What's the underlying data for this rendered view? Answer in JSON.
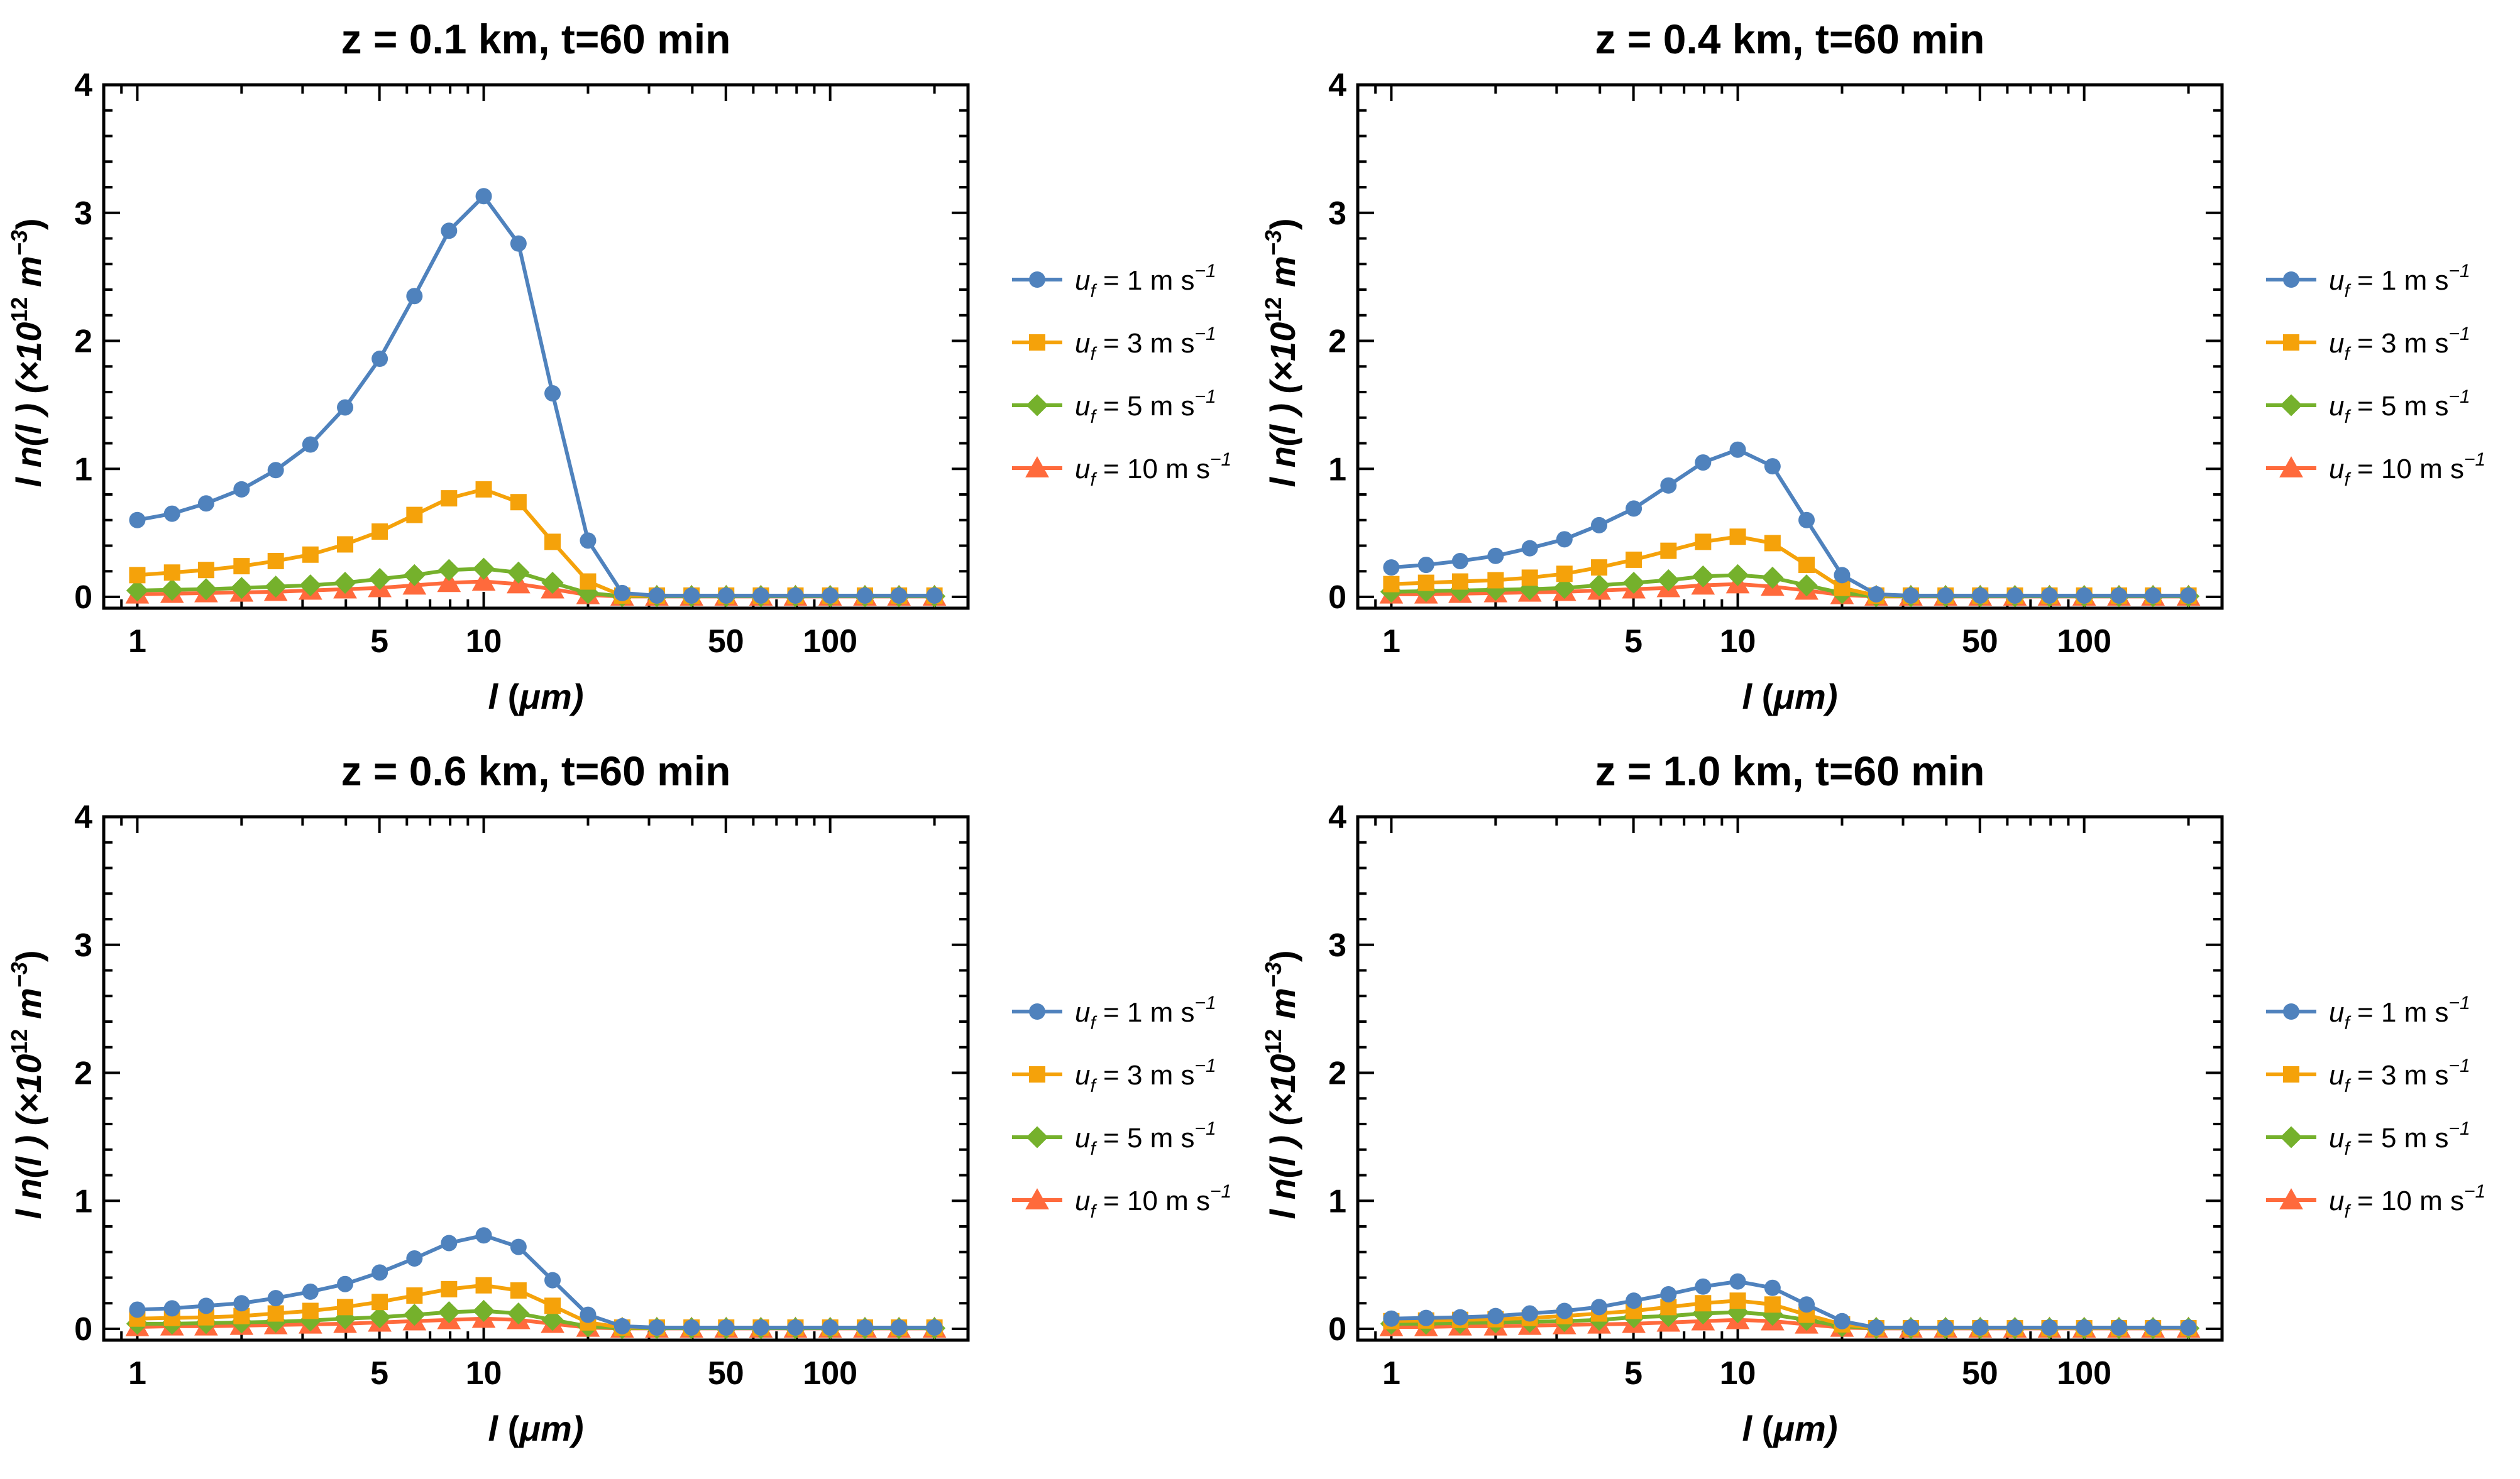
{
  "figure": {
    "legend": [
      {
        "prefix": "u",
        "sub": "f",
        "label": " = 1 m s",
        "sup": "−1",
        "color": "#4f82bd",
        "marker": "circle"
      },
      {
        "prefix": "u",
        "sub": "f",
        "label": " = 3 m s",
        "sup": "−1",
        "color": "#f5a20a",
        "marker": "square"
      },
      {
        "prefix": "u",
        "sub": "f",
        "label": " = 5 m s",
        "sup": "−1",
        "color": "#75b12c",
        "marker": "diamond"
      },
      {
        "prefix": "u",
        "sub": "f",
        "label": " = 10 m s",
        "sup": "−1",
        "color": "#ff6a3c",
        "marker": "triangle"
      }
    ],
    "xlabel": {
      "sym": "l",
      "rest": " (",
      "mu": "μ",
      "unit": "m)"
    },
    "ylabel": {
      "part1": "l n(l ) (×10",
      "sup1": "12",
      "part2": " m",
      "sup2": "−3",
      "part3": ")"
    }
  },
  "chart_data": [
    {
      "type": "line",
      "title": "z = 0.1 km, t=60 min",
      "xscale": "log",
      "xlim": [
        0.8,
        250
      ],
      "ylim": [
        0,
        4
      ],
      "xticks": [
        1,
        5,
        10,
        50,
        100
      ],
      "yticks": [
        0,
        1,
        2,
        3,
        4
      ],
      "x": [
        1,
        1.26,
        1.58,
        2,
        2.51,
        3.16,
        3.98,
        5.01,
        6.31,
        7.94,
        10,
        12.6,
        15.8,
        20,
        25.1,
        31.6,
        39.8,
        50.1,
        63.1,
        79.4,
        100,
        126,
        158,
        200
      ],
      "series": [
        {
          "name": "u_f = 1 m s^-1",
          "values": [
            0.6,
            0.65,
            0.73,
            0.84,
            0.99,
            1.19,
            1.48,
            1.86,
            2.35,
            2.86,
            3.13,
            2.76,
            1.59,
            0.44,
            0.03,
            0.01,
            0.01,
            0.01,
            0.01,
            0.01,
            0.01,
            0.01,
            0.01,
            0.01
          ]
        },
        {
          "name": "u_f = 3 m s^-1",
          "values": [
            0.17,
            0.19,
            0.21,
            0.24,
            0.28,
            0.33,
            0.41,
            0.51,
            0.64,
            0.77,
            0.84,
            0.74,
            0.43,
            0.12,
            0.01,
            0.01,
            0.01,
            0.01,
            0.01,
            0.01,
            0.01,
            0.01,
            0.01,
            0.01
          ]
        },
        {
          "name": "u_f = 5 m s^-1",
          "values": [
            0.05,
            0.055,
            0.06,
            0.07,
            0.08,
            0.09,
            0.11,
            0.14,
            0.17,
            0.21,
            0.22,
            0.19,
            0.11,
            0.03,
            0.005,
            0.005,
            0.005,
            0.005,
            0.005,
            0.005,
            0.005,
            0.005,
            0.005,
            0.005
          ]
        },
        {
          "name": "u_f = 10 m s^-1",
          "values": [
            0.02,
            0.025,
            0.03,
            0.035,
            0.04,
            0.05,
            0.06,
            0.07,
            0.09,
            0.11,
            0.12,
            0.1,
            0.06,
            0.015,
            0.003,
            0.003,
            0.003,
            0.003,
            0.003,
            0.003,
            0.003,
            0.003,
            0.003,
            0.003
          ]
        }
      ]
    },
    {
      "type": "line",
      "title": "z = 0.4 km, t=60 min",
      "xscale": "log",
      "xlim": [
        0.8,
        250
      ],
      "ylim": [
        0,
        4
      ],
      "xticks": [
        1,
        5,
        10,
        50,
        100
      ],
      "yticks": [
        0,
        1,
        2,
        3,
        4
      ],
      "x": [
        1,
        1.26,
        1.58,
        2,
        2.51,
        3.16,
        3.98,
        5.01,
        6.31,
        7.94,
        10,
        12.6,
        15.8,
        20,
        25.1,
        31.6,
        39.8,
        50.1,
        63.1,
        79.4,
        100,
        126,
        158,
        200
      ],
      "series": [
        {
          "name": "u_f = 1 m s^-1",
          "values": [
            0.23,
            0.25,
            0.28,
            0.32,
            0.38,
            0.45,
            0.56,
            0.69,
            0.87,
            1.05,
            1.15,
            1.02,
            0.6,
            0.17,
            0.02,
            0.01,
            0.01,
            0.01,
            0.01,
            0.01,
            0.01,
            0.01,
            0.01,
            0.01
          ]
        },
        {
          "name": "u_f = 3 m s^-1",
          "values": [
            0.1,
            0.11,
            0.12,
            0.13,
            0.15,
            0.18,
            0.23,
            0.29,
            0.36,
            0.43,
            0.47,
            0.42,
            0.25,
            0.07,
            0.01,
            0.01,
            0.01,
            0.01,
            0.01,
            0.01,
            0.01,
            0.01,
            0.01,
            0.01
          ]
        },
        {
          "name": "u_f = 5 m s^-1",
          "values": [
            0.04,
            0.045,
            0.05,
            0.055,
            0.06,
            0.07,
            0.09,
            0.11,
            0.13,
            0.16,
            0.17,
            0.15,
            0.09,
            0.03,
            0.005,
            0.005,
            0.005,
            0.005,
            0.005,
            0.005,
            0.005,
            0.005,
            0.005,
            0.005
          ]
        },
        {
          "name": "u_f = 10 m s^-1",
          "values": [
            0.02,
            0.02,
            0.025,
            0.03,
            0.035,
            0.04,
            0.05,
            0.06,
            0.07,
            0.09,
            0.1,
            0.08,
            0.05,
            0.015,
            0.003,
            0.003,
            0.003,
            0.003,
            0.003,
            0.003,
            0.003,
            0.003,
            0.003,
            0.003
          ]
        }
      ]
    },
    {
      "type": "line",
      "title": "z = 0.6 km, t=60 min",
      "xscale": "log",
      "xlim": [
        0.8,
        250
      ],
      "ylim": [
        0,
        4
      ],
      "xticks": [
        1,
        5,
        10,
        50,
        100
      ],
      "yticks": [
        0,
        1,
        2,
        3,
        4
      ],
      "x": [
        1,
        1.26,
        1.58,
        2,
        2.51,
        3.16,
        3.98,
        5.01,
        6.31,
        7.94,
        10,
        12.6,
        15.8,
        20,
        25.1,
        31.6,
        39.8,
        50.1,
        63.1,
        79.4,
        100,
        126,
        158,
        200
      ],
      "series": [
        {
          "name": "u_f = 1 m s^-1",
          "values": [
            0.15,
            0.16,
            0.18,
            0.2,
            0.24,
            0.29,
            0.35,
            0.44,
            0.55,
            0.67,
            0.73,
            0.64,
            0.38,
            0.11,
            0.02,
            0.01,
            0.01,
            0.01,
            0.01,
            0.01,
            0.01,
            0.01,
            0.01,
            0.01
          ]
        },
        {
          "name": "u_f = 3 m s^-1",
          "values": [
            0.08,
            0.085,
            0.09,
            0.1,
            0.12,
            0.14,
            0.17,
            0.21,
            0.26,
            0.31,
            0.34,
            0.3,
            0.18,
            0.05,
            0.01,
            0.01,
            0.01,
            0.01,
            0.01,
            0.01,
            0.01,
            0.01,
            0.01,
            0.01
          ]
        },
        {
          "name": "u_f = 5 m s^-1",
          "values": [
            0.04,
            0.04,
            0.045,
            0.05,
            0.055,
            0.065,
            0.08,
            0.09,
            0.11,
            0.13,
            0.14,
            0.12,
            0.07,
            0.02,
            0.005,
            0.005,
            0.005,
            0.005,
            0.005,
            0.005,
            0.005,
            0.005,
            0.005,
            0.005
          ]
        },
        {
          "name": "u_f = 10 m s^-1",
          "values": [
            0.015,
            0.02,
            0.02,
            0.025,
            0.03,
            0.035,
            0.04,
            0.05,
            0.06,
            0.07,
            0.08,
            0.07,
            0.04,
            0.01,
            0.003,
            0.003,
            0.003,
            0.003,
            0.003,
            0.003,
            0.003,
            0.003,
            0.003,
            0.003
          ]
        }
      ]
    },
    {
      "type": "line",
      "title": "z = 1.0 km, t=60 min",
      "xscale": "log",
      "xlim": [
        0.8,
        250
      ],
      "ylim": [
        0,
        4
      ],
      "xticks": [
        1,
        5,
        10,
        50,
        100
      ],
      "yticks": [
        0,
        1,
        2,
        3,
        4
      ],
      "x": [
        1,
        1.26,
        1.58,
        2,
        2.51,
        3.16,
        3.98,
        5.01,
        6.31,
        7.94,
        10,
        12.6,
        15.8,
        20,
        25.1,
        31.6,
        39.8,
        50.1,
        63.1,
        79.4,
        100,
        126,
        158,
        200
      ],
      "series": [
        {
          "name": "u_f = 1 m s^-1",
          "values": [
            0.08,
            0.085,
            0.09,
            0.1,
            0.12,
            0.14,
            0.17,
            0.22,
            0.27,
            0.33,
            0.37,
            0.32,
            0.19,
            0.06,
            0.01,
            0.01,
            0.01,
            0.01,
            0.01,
            0.01,
            0.01,
            0.01,
            0.01,
            0.01
          ]
        },
        {
          "name": "u_f = 3 m s^-1",
          "values": [
            0.06,
            0.065,
            0.07,
            0.075,
            0.085,
            0.1,
            0.12,
            0.14,
            0.17,
            0.2,
            0.22,
            0.19,
            0.11,
            0.035,
            0.005,
            0.005,
            0.005,
            0.005,
            0.005,
            0.005,
            0.005,
            0.005,
            0.005,
            0.005
          ]
        },
        {
          "name": "u_f = 5 m s^-1",
          "values": [
            0.04,
            0.04,
            0.045,
            0.05,
            0.055,
            0.06,
            0.07,
            0.09,
            0.1,
            0.12,
            0.13,
            0.11,
            0.07,
            0.02,
            0.005,
            0.005,
            0.005,
            0.005,
            0.005,
            0.005,
            0.005,
            0.005,
            0.005,
            0.005
          ]
        },
        {
          "name": "u_f = 10 m s^-1",
          "values": [
            0.015,
            0.015,
            0.02,
            0.02,
            0.025,
            0.03,
            0.035,
            0.04,
            0.05,
            0.06,
            0.07,
            0.06,
            0.035,
            0.01,
            0.003,
            0.003,
            0.003,
            0.003,
            0.003,
            0.003,
            0.003,
            0.003,
            0.003,
            0.003
          ]
        }
      ]
    }
  ]
}
